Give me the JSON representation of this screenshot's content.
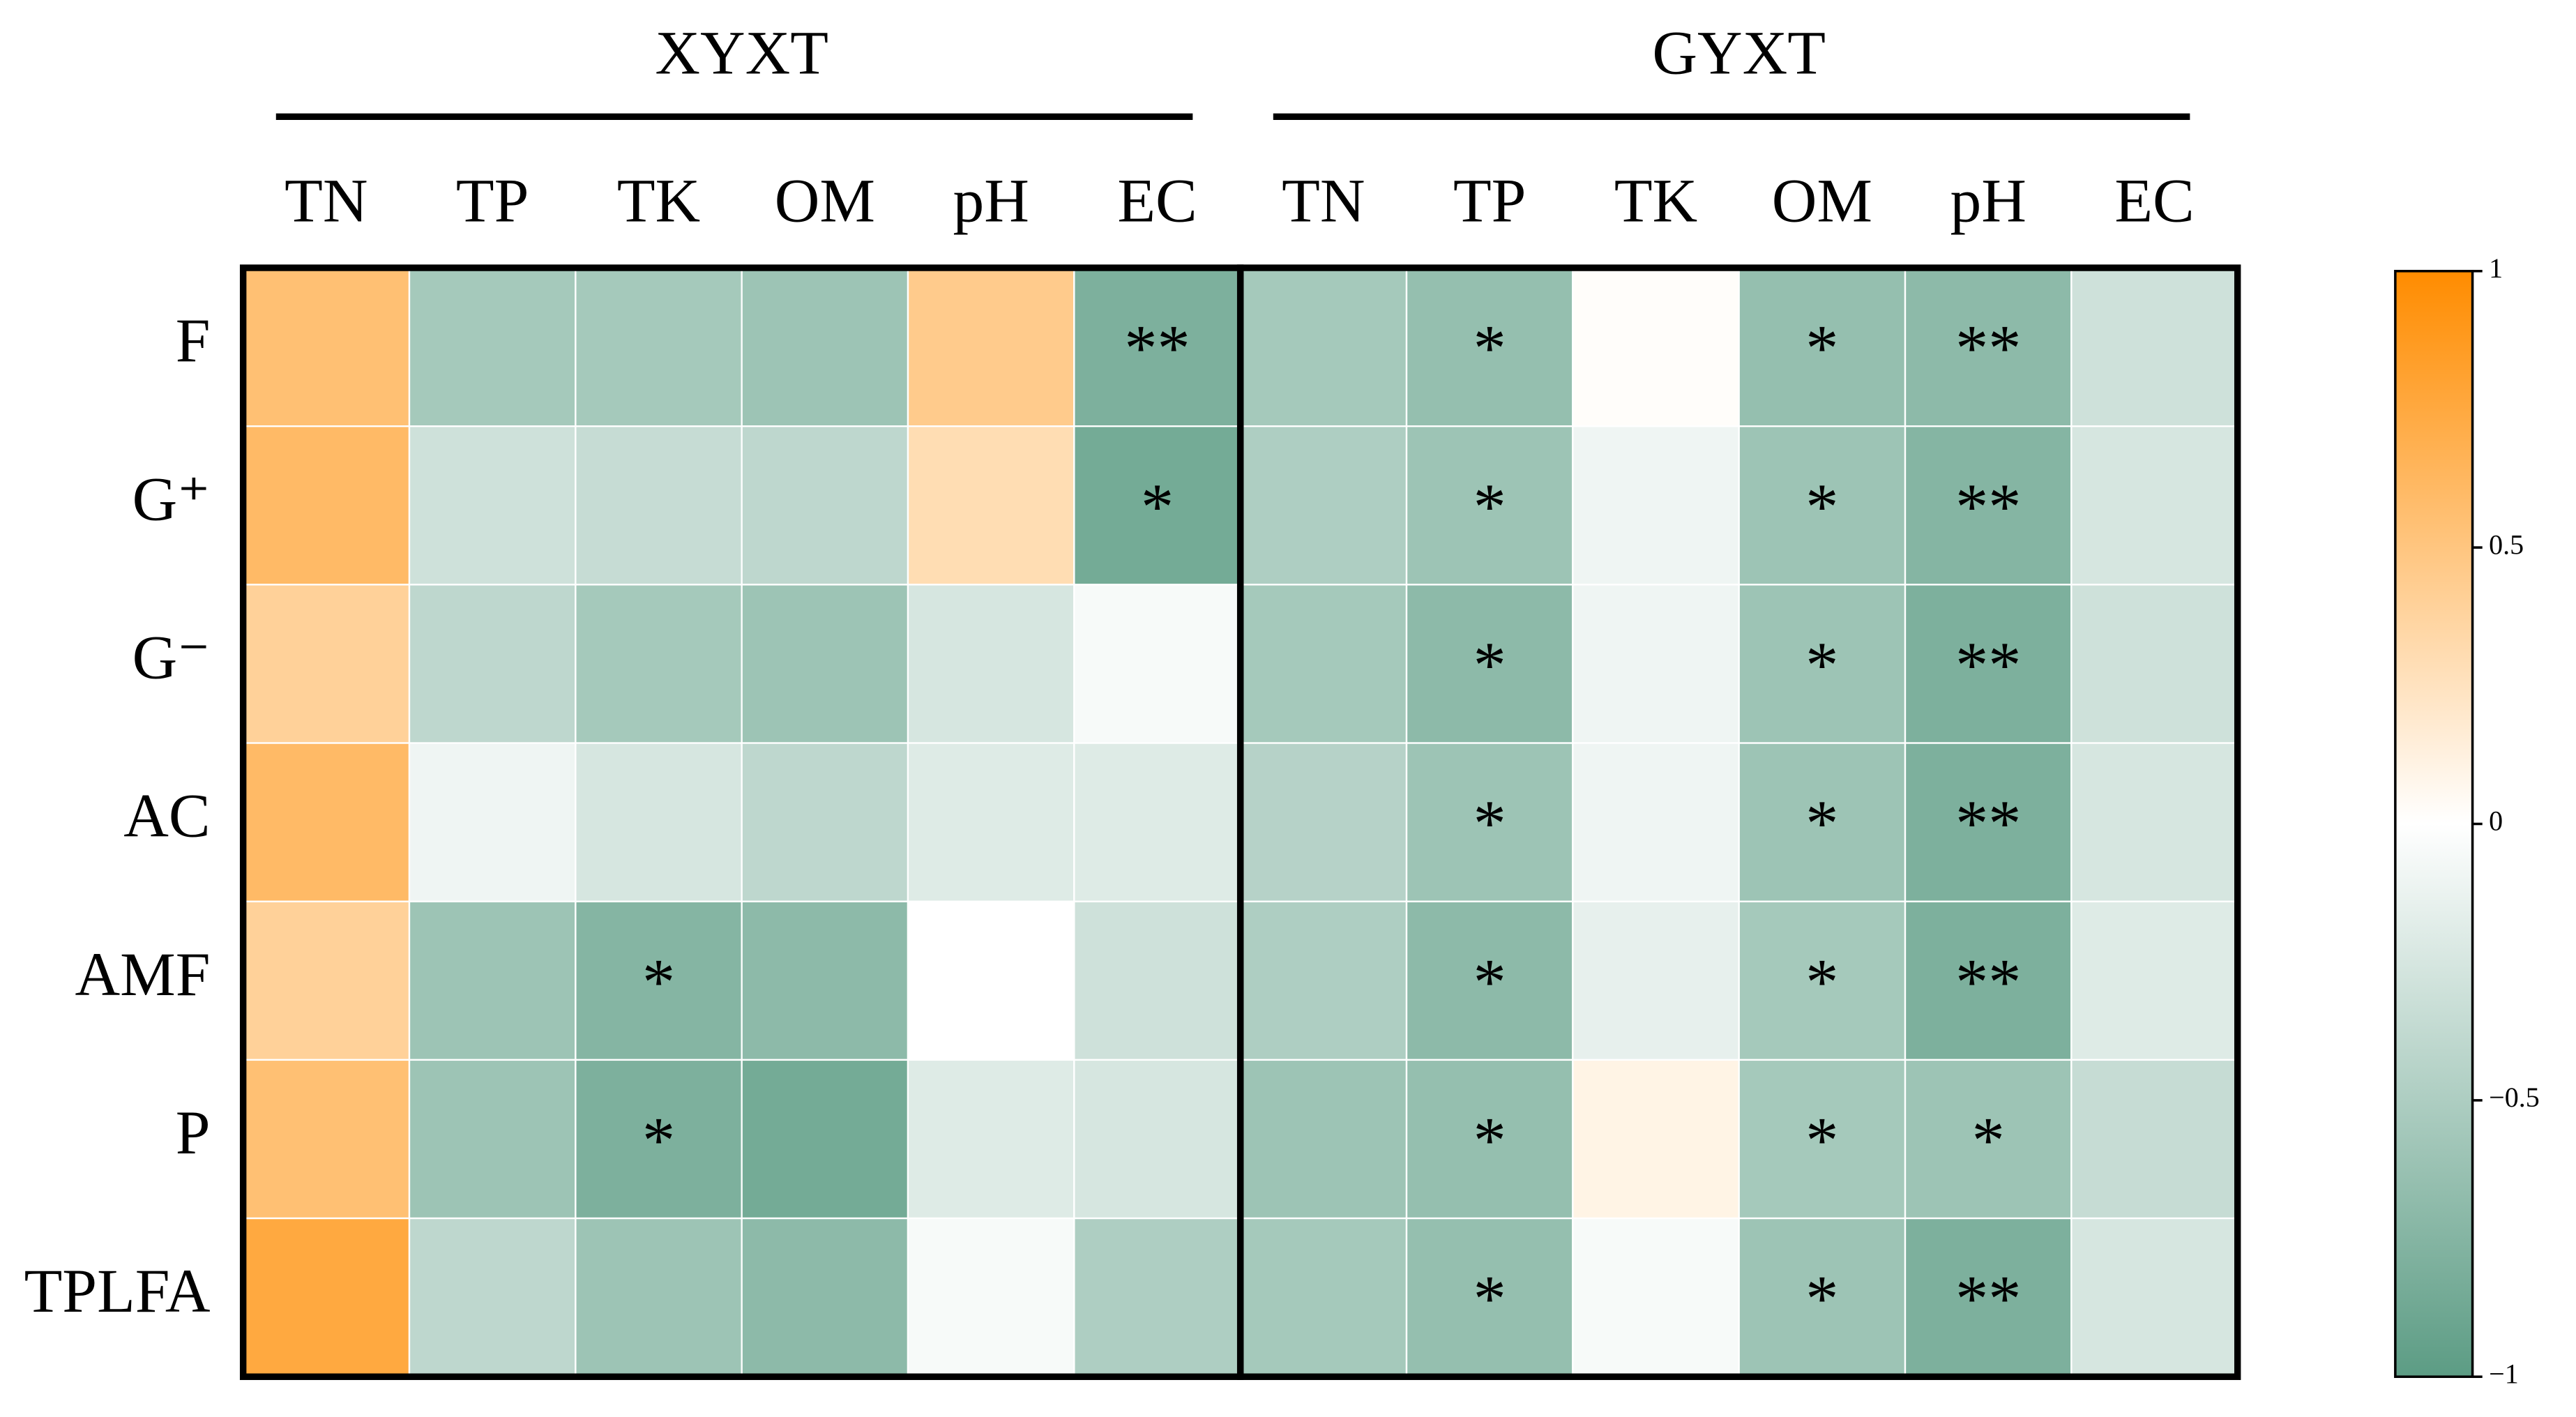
{
  "chart_data": {
    "type": "heatmap",
    "groups": [
      "XYXT",
      "GYXT"
    ],
    "columns": [
      "TN",
      "TP",
      "TK",
      "OM",
      "pH",
      "EC",
      "TN",
      "TP",
      "TK",
      "OM",
      "pH",
      "EC"
    ],
    "rows": [
      "F",
      "G⁺",
      "G⁻",
      "AC",
      "AMF",
      "P",
      "TPLFA"
    ],
    "values": [
      [
        0.55,
        -0.55,
        -0.55,
        -0.6,
        0.45,
        -0.8,
        -0.55,
        -0.65,
        0.02,
        -0.65,
        -0.7,
        -0.3
      ],
      [
        0.6,
        -0.3,
        -0.35,
        -0.4,
        0.3,
        -0.85,
        -0.5,
        -0.6,
        -0.1,
        -0.6,
        -0.75,
        -0.25
      ],
      [
        0.4,
        -0.4,
        -0.55,
        -0.6,
        -0.25,
        -0.05,
        -0.55,
        -0.7,
        -0.1,
        -0.6,
        -0.8,
        -0.3
      ],
      [
        0.6,
        -0.1,
        -0.25,
        -0.4,
        -0.2,
        -0.2,
        -0.45,
        -0.6,
        -0.1,
        -0.6,
        -0.8,
        -0.25
      ],
      [
        0.4,
        -0.6,
        -0.75,
        -0.7,
        0,
        -0.3,
        -0.5,
        -0.7,
        -0.15,
        -0.55,
        -0.8,
        -0.2
      ],
      [
        0.55,
        -0.6,
        -0.8,
        -0.85,
        -0.2,
        -0.25,
        -0.6,
        -0.65,
        0.1,
        -0.55,
        -0.6,
        -0.35
      ],
      [
        0.75,
        -0.4,
        -0.6,
        -0.7,
        -0.05,
        -0.5,
        -0.55,
        -0.65,
        -0.05,
        -0.6,
        -0.8,
        -0.25
      ]
    ],
    "significance": [
      [
        null,
        null,
        null,
        null,
        null,
        "**",
        null,
        "*",
        null,
        "*",
        "**",
        null
      ],
      [
        null,
        null,
        null,
        null,
        null,
        "*",
        null,
        "*",
        null,
        "*",
        "**",
        null
      ],
      [
        null,
        null,
        null,
        null,
        null,
        null,
        null,
        "*",
        null,
        "*",
        "**",
        null
      ],
      [
        null,
        null,
        null,
        null,
        null,
        null,
        null,
        "*",
        null,
        "*",
        "**",
        null
      ],
      [
        null,
        null,
        "*",
        null,
        null,
        null,
        null,
        "*",
        null,
        "*",
        "**",
        null
      ],
      [
        null,
        null,
        "*",
        null,
        null,
        null,
        null,
        "*",
        null,
        "*",
        "*",
        null
      ],
      [
        null,
        null,
        null,
        null,
        null,
        null,
        null,
        "*",
        null,
        "*",
        "**",
        null
      ]
    ],
    "colormap": [
      "#5c9c84",
      "#ffffff",
      "#ff8c00"
    ],
    "clim": [
      -1,
      1
    ],
    "cticks": [
      {
        "value": -1,
        "label": "−1"
      },
      {
        "value": -0.5,
        "label": "−0.5"
      },
      0,
      0.5,
      1
    ]
  }
}
